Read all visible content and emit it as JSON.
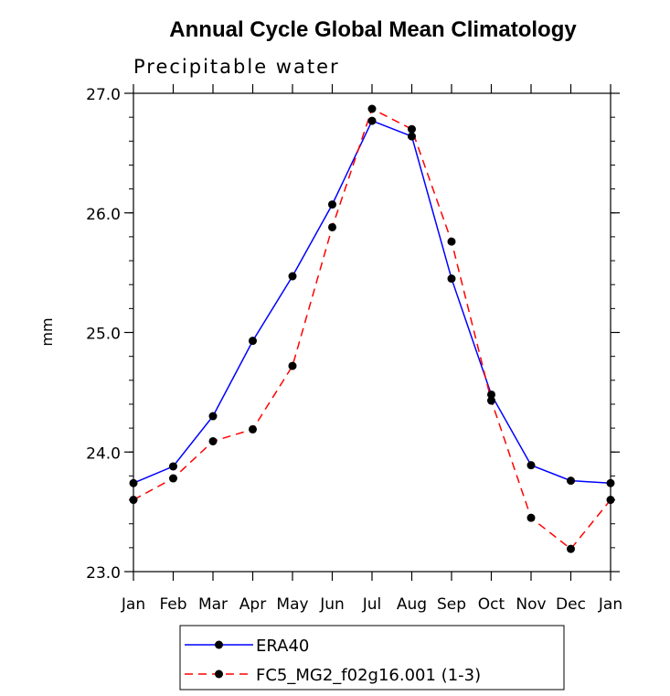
{
  "chart_data": {
    "type": "line",
    "title": "Annual Cycle Global Mean Climatology",
    "subtitle": "Precipitable water",
    "xlabel": "",
    "ylabel": "mm",
    "categories": [
      "Jan",
      "Feb",
      "Mar",
      "Apr",
      "May",
      "Jun",
      "Jul",
      "Aug",
      "Sep",
      "Oct",
      "Nov",
      "Dec",
      "Jan"
    ],
    "ylim": [
      23.0,
      27.0
    ],
    "yticks": [
      "23.0",
      "24.0",
      "25.0",
      "26.0",
      "27.0"
    ],
    "grid": false,
    "legend_position": "bottom",
    "series": [
      {
        "name": "ERA40",
        "color": "#0000ff",
        "line_style": "solid",
        "marker": "filled-circle",
        "marker_color": "#000000",
        "values": [
          23.74,
          23.88,
          24.3,
          24.93,
          25.47,
          26.07,
          26.77,
          26.64,
          25.45,
          24.48,
          23.89,
          23.76,
          23.74
        ]
      },
      {
        "name": "FC5_MG2_f02g16.001 (1-3)",
        "color": "#ff0000",
        "line_style": "dashed",
        "marker": "filled-circle",
        "marker_color": "#000000",
        "values": [
          23.6,
          23.78,
          24.09,
          24.19,
          24.72,
          25.88,
          26.87,
          26.7,
          25.76,
          24.43,
          23.45,
          23.19,
          23.6
        ]
      }
    ]
  }
}
